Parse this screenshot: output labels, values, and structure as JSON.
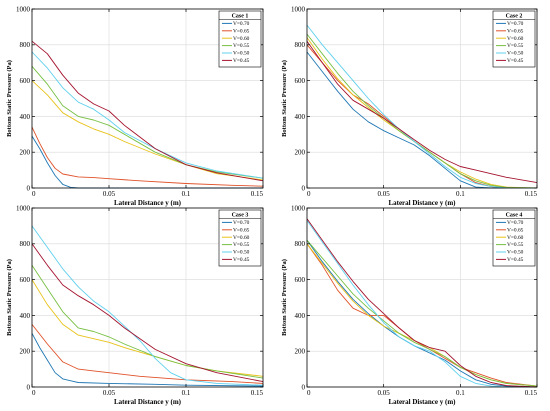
{
  "figure": {
    "xlabel": "Lateral Distance y (m)",
    "ylabel": "Bottom Static Pressure (Pa)",
    "legend_title_prefix": "Case",
    "legend_entries": [
      "V=0.70",
      "V=0.65",
      "V=0.60",
      "V=0.55",
      "V=0.50",
      "V=0.45"
    ],
    "series_colors": [
      "#1f77b4",
      "#e0522a",
      "#e8c21b",
      "#77c043",
      "#5fd0ee",
      "#a4142f"
    ],
    "frame_color": "#000000",
    "grid_color": "#d9d9d9"
  },
  "chart_data": [
    {
      "type": "line",
      "case": "1",
      "xlim": [
        0,
        0.15
      ],
      "ylim": [
        0,
        1000
      ],
      "xticks": [
        0,
        0.05,
        0.1,
        0.15
      ],
      "xtick_labels": [
        "0",
        "0.05",
        "0.1",
        "0.15"
      ],
      "yticks": [
        0,
        200,
        400,
        600,
        800,
        1000
      ],
      "ytick_labels": [
        "0",
        "200",
        "400",
        "600",
        "800",
        "1000"
      ],
      "grid": true,
      "legend_position": "top-right",
      "series": [
        {
          "x": [
            0,
            0.005,
            0.01,
            0.015,
            0.02,
            0.025,
            0.03,
            0.15
          ],
          "y": [
            290,
            220,
            140,
            70,
            20,
            4,
            0,
            0
          ]
        },
        {
          "x": [
            0,
            0.005,
            0.01,
            0.015,
            0.02,
            0.03,
            0.04,
            0.05,
            0.07,
            0.1,
            0.13,
            0.15
          ],
          "y": [
            340,
            250,
            170,
            110,
            78,
            62,
            58,
            52,
            40,
            25,
            15,
            10
          ]
        },
        {
          "x": [
            0,
            0.01,
            0.02,
            0.03,
            0.04,
            0.05,
            0.06,
            0.08,
            0.1,
            0.12,
            0.15
          ],
          "y": [
            600,
            520,
            420,
            370,
            330,
            300,
            260,
            190,
            130,
            80,
            45
          ]
        },
        {
          "x": [
            0,
            0.01,
            0.02,
            0.03,
            0.04,
            0.05,
            0.06,
            0.08,
            0.1,
            0.12,
            0.15
          ],
          "y": [
            680,
            580,
            460,
            400,
            380,
            350,
            300,
            200,
            130,
            90,
            55
          ]
        },
        {
          "x": [
            0,
            0.01,
            0.02,
            0.03,
            0.04,
            0.05,
            0.06,
            0.08,
            0.1,
            0.12,
            0.15
          ],
          "y": [
            760,
            670,
            560,
            480,
            440,
            380,
            310,
            220,
            140,
            95,
            55
          ]
        },
        {
          "x": [
            0,
            0.01,
            0.02,
            0.03,
            0.04,
            0.05,
            0.06,
            0.08,
            0.1,
            0.12,
            0.15
          ],
          "y": [
            820,
            750,
            630,
            530,
            470,
            430,
            350,
            220,
            130,
            85,
            40
          ]
        }
      ]
    },
    {
      "type": "line",
      "case": "2",
      "xlim": [
        0,
        0.15
      ],
      "ylim": [
        0,
        1000
      ],
      "xticks": [
        0,
        0.05,
        0.1,
        0.15
      ],
      "xtick_labels": [
        "0",
        "0.05",
        "0.1",
        "0.15"
      ],
      "yticks": [
        0,
        200,
        400,
        600,
        800,
        1000
      ],
      "ytick_labels": [
        "0",
        "200",
        "400",
        "600",
        "800",
        "1000"
      ],
      "grid": true,
      "legend_position": "top-right",
      "series": [
        {
          "x": [
            0,
            0.01,
            0.02,
            0.03,
            0.04,
            0.05,
            0.06,
            0.07,
            0.08,
            0.09,
            0.1,
            0.11,
            0.12,
            0.13,
            0.15
          ],
          "y": [
            760,
            650,
            540,
            440,
            370,
            320,
            280,
            240,
            180,
            110,
            40,
            5,
            0,
            0,
            0
          ]
        },
        {
          "x": [
            0,
            0.01,
            0.02,
            0.03,
            0.04,
            0.05,
            0.06,
            0.07,
            0.08,
            0.09,
            0.1,
            0.11,
            0.12,
            0.13,
            0.15
          ],
          "y": [
            800,
            700,
            600,
            520,
            470,
            400,
            330,
            260,
            200,
            140,
            80,
            30,
            8,
            0,
            0
          ]
        },
        {
          "x": [
            0,
            0.01,
            0.02,
            0.03,
            0.04,
            0.05,
            0.06,
            0.07,
            0.08,
            0.09,
            0.1,
            0.11,
            0.12,
            0.13,
            0.15
          ],
          "y": [
            840,
            720,
            610,
            520,
            450,
            380,
            320,
            260,
            200,
            140,
            90,
            50,
            20,
            5,
            0
          ]
        },
        {
          "x": [
            0,
            0.01,
            0.02,
            0.03,
            0.04,
            0.05,
            0.06,
            0.07,
            0.08,
            0.09,
            0.1,
            0.11,
            0.12,
            0.13,
            0.15
          ],
          "y": [
            860,
            750,
            640,
            540,
            460,
            390,
            320,
            260,
            200,
            140,
            80,
            40,
            15,
            3,
            0
          ]
        },
        {
          "x": [
            0,
            0.01,
            0.02,
            0.03,
            0.04,
            0.05,
            0.06,
            0.07,
            0.08,
            0.09,
            0.1,
            0.11,
            0.12,
            0.13,
            0.15
          ],
          "y": [
            910,
            800,
            700,
            600,
            500,
            410,
            330,
            260,
            190,
            120,
            60,
            25,
            8,
            0,
            0
          ]
        },
        {
          "x": [
            0,
            0.01,
            0.02,
            0.03,
            0.04,
            0.05,
            0.06,
            0.07,
            0.08,
            0.09,
            0.1,
            0.11,
            0.12,
            0.13,
            0.15
          ],
          "y": [
            820,
            700,
            580,
            490,
            440,
            390,
            330,
            270,
            210,
            160,
            120,
            100,
            80,
            60,
            30
          ]
        }
      ]
    },
    {
      "type": "line",
      "case": "3",
      "xlim": [
        0,
        0.15
      ],
      "ylim": [
        0,
        1000
      ],
      "xticks": [
        0,
        0.05,
        0.1,
        0.15
      ],
      "xtick_labels": [
        "0",
        "0.05",
        "0.1",
        "0.15"
      ],
      "yticks": [
        0,
        200,
        400,
        600,
        800,
        1000
      ],
      "ytick_labels": [
        "0",
        "200",
        "400",
        "600",
        "800",
        "1000"
      ],
      "grid": true,
      "legend_position": "top-right",
      "series": [
        {
          "x": [
            0,
            0.005,
            0.01,
            0.015,
            0.02,
            0.03,
            0.05,
            0.08,
            0.1,
            0.15
          ],
          "y": [
            300,
            220,
            150,
            80,
            45,
            25,
            20,
            15,
            10,
            5
          ]
        },
        {
          "x": [
            0,
            0.01,
            0.02,
            0.03,
            0.04,
            0.05,
            0.07,
            0.1,
            0.13,
            0.15
          ],
          "y": [
            350,
            240,
            140,
            100,
            90,
            80,
            60,
            40,
            30,
            20
          ]
        },
        {
          "x": [
            0,
            0.01,
            0.02,
            0.03,
            0.04,
            0.05,
            0.06,
            0.08,
            0.1,
            0.12,
            0.15
          ],
          "y": [
            600,
            460,
            350,
            290,
            270,
            250,
            220,
            170,
            120,
            90,
            60
          ]
        },
        {
          "x": [
            0,
            0.01,
            0.02,
            0.03,
            0.04,
            0.05,
            0.06,
            0.08,
            0.1,
            0.12,
            0.15
          ],
          "y": [
            680,
            550,
            420,
            330,
            310,
            280,
            240,
            170,
            120,
            90,
            50
          ]
        },
        {
          "x": [
            0,
            0.01,
            0.02,
            0.03,
            0.04,
            0.05,
            0.06,
            0.07,
            0.08,
            0.09,
            0.1,
            0.12,
            0.15
          ],
          "y": [
            900,
            780,
            660,
            560,
            480,
            420,
            340,
            260,
            160,
            80,
            40,
            20,
            10
          ]
        },
        {
          "x": [
            0,
            0.01,
            0.02,
            0.03,
            0.04,
            0.05,
            0.06,
            0.08,
            0.1,
            0.12,
            0.15
          ],
          "y": [
            800,
            680,
            570,
            510,
            460,
            400,
            330,
            210,
            130,
            80,
            30
          ]
        }
      ]
    },
    {
      "type": "line",
      "case": "4",
      "xlim": [
        0,
        0.15
      ],
      "ylim": [
        0,
        1000
      ],
      "xticks": [
        0,
        0.05,
        0.1,
        0.15
      ],
      "xtick_labels": [
        "0",
        "0.05",
        "0.1",
        "0.15"
      ],
      "yticks": [
        0,
        200,
        400,
        600,
        800,
        1000
      ],
      "ytick_labels": [
        "0",
        "200",
        "400",
        "600",
        "800",
        "1000"
      ],
      "grid": true,
      "legend_position": "top-right",
      "series": [
        {
          "x": [
            0,
            0.01,
            0.02,
            0.03,
            0.04,
            0.05,
            0.06,
            0.07,
            0.08,
            0.09,
            0.1,
            0.11,
            0.12,
            0.13,
            0.15
          ],
          "y": [
            820,
            700,
            590,
            490,
            410,
            340,
            280,
            230,
            190,
            150,
            90,
            40,
            15,
            5,
            0
          ]
        },
        {
          "x": [
            0,
            0.01,
            0.02,
            0.03,
            0.04,
            0.05,
            0.06,
            0.07,
            0.08,
            0.09,
            0.1,
            0.11,
            0.12,
            0.13,
            0.15
          ],
          "y": [
            800,
            680,
            540,
            440,
            400,
            400,
            330,
            260,
            210,
            160,
            110,
            80,
            50,
            25,
            5
          ]
        },
        {
          "x": [
            0,
            0.01,
            0.02,
            0.03,
            0.04,
            0.05,
            0.06,
            0.07,
            0.08,
            0.09,
            0.1,
            0.11,
            0.12,
            0.13,
            0.15
          ],
          "y": [
            800,
            690,
            580,
            480,
            400,
            340,
            300,
            260,
            220,
            170,
            110,
            70,
            40,
            20,
            5
          ]
        },
        {
          "x": [
            0,
            0.01,
            0.02,
            0.03,
            0.04,
            0.05,
            0.06,
            0.07,
            0.08,
            0.09,
            0.1,
            0.11,
            0.12,
            0.13,
            0.15
          ],
          "y": [
            820,
            720,
            620,
            520,
            440,
            370,
            300,
            250,
            210,
            170,
            110,
            70,
            40,
            20,
            5
          ]
        },
        {
          "x": [
            0,
            0.01,
            0.02,
            0.03,
            0.04,
            0.05,
            0.06,
            0.07,
            0.08,
            0.09,
            0.1,
            0.11,
            0.12,
            0.13,
            0.15
          ],
          "y": [
            930,
            810,
            690,
            570,
            460,
            360,
            280,
            230,
            200,
            140,
            60,
            20,
            5,
            0,
            0
          ]
        },
        {
          "x": [
            0,
            0.01,
            0.02,
            0.03,
            0.04,
            0.05,
            0.06,
            0.07,
            0.08,
            0.09,
            0.1,
            0.11,
            0.12,
            0.13,
            0.15
          ],
          "y": [
            940,
            820,
            700,
            590,
            490,
            410,
            330,
            260,
            220,
            200,
            120,
            60,
            25,
            8,
            0
          ]
        }
      ]
    }
  ]
}
